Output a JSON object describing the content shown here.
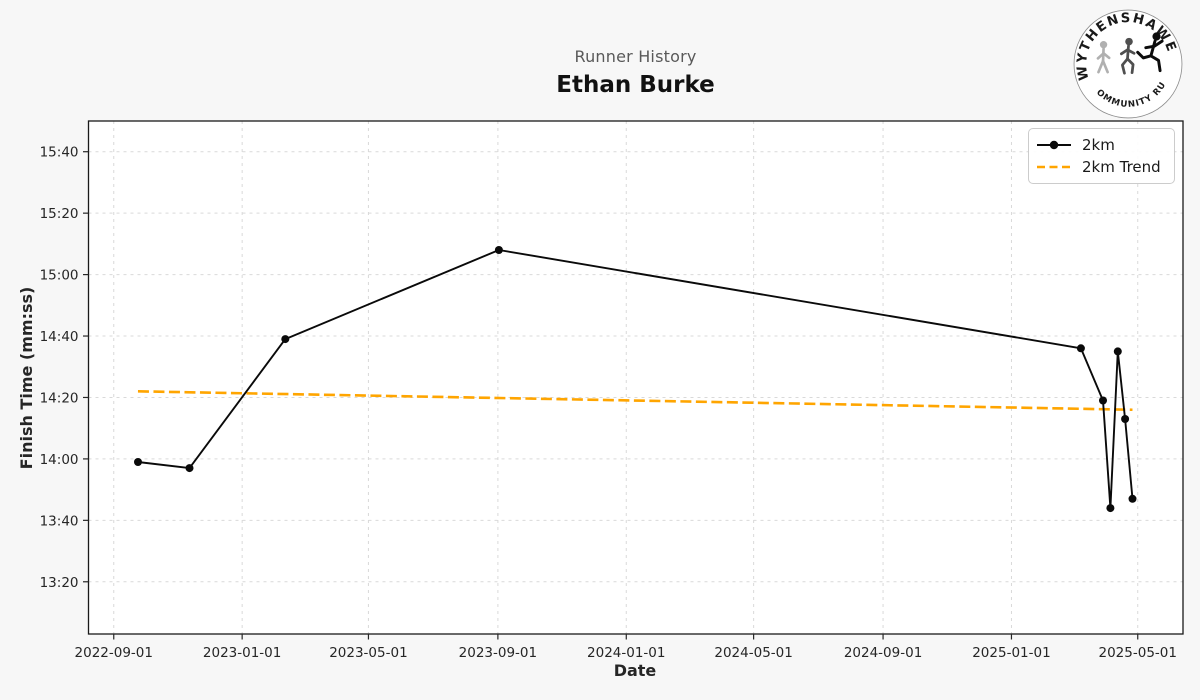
{
  "header": {
    "chart_context": "Runner History",
    "runner_name": "Ethan Burke"
  },
  "logo": {
    "arc_top": "WYTHENSHAWE",
    "arc_bottom": "COMMUNITY RUN"
  },
  "axes": {
    "xlabel": "Date",
    "ylabel": "Finish Time (mm:ss)"
  },
  "chart_data": {
    "type": "line",
    "title": "Runner History",
    "subtitle": "Ethan Burke",
    "xlabel": "Date",
    "ylabel": "Finish Time (mm:ss)",
    "grid": true,
    "legend_position": "upper right",
    "xlim": [
      "2022-08-08",
      "2025-06-13"
    ],
    "ylim_mmss": [
      "13:03",
      "15:50"
    ],
    "x_ticks": [
      "2022-09-01",
      "2023-01-01",
      "2023-05-01",
      "2023-09-01",
      "2024-01-01",
      "2024-05-01",
      "2024-09-01",
      "2025-01-01",
      "2025-05-01"
    ],
    "y_ticks": [
      "13:20",
      "13:40",
      "14:00",
      "14:20",
      "14:40",
      "15:00",
      "15:20",
      "15:40"
    ],
    "series": [
      {
        "name": "2km",
        "color": "#0a0a0a",
        "style": "solid_with_markers",
        "points": [
          {
            "date": "2022-09-24",
            "time": "13:59"
          },
          {
            "date": "2022-11-12",
            "time": "13:57"
          },
          {
            "date": "2023-02-11",
            "time": "14:39"
          },
          {
            "date": "2023-09-02",
            "time": "15:08"
          },
          {
            "date": "2025-03-08",
            "time": "14:36"
          },
          {
            "date": "2025-03-29",
            "time": "14:19"
          },
          {
            "date": "2025-04-05",
            "time": "13:44"
          },
          {
            "date": "2025-04-12",
            "time": "14:35"
          },
          {
            "date": "2025-04-19",
            "time": "14:13"
          },
          {
            "date": "2025-04-26",
            "time": "13:47"
          }
        ]
      },
      {
        "name": "2km Trend",
        "color": "#FFA500",
        "style": "dashed",
        "points": [
          {
            "date": "2022-09-24",
            "time": "14:22"
          },
          {
            "date": "2025-04-26",
            "time": "14:16"
          }
        ]
      }
    ]
  },
  "colors": {
    "figure_bg": "#f7f7f7",
    "plot_bg": "#ffffff",
    "grid": "#d9d9d9",
    "spine": "#1a1a1a",
    "tick_label": "#262626",
    "title_gray": "#595959",
    "accent_orange": "#FFA500",
    "series_black": "#0a0a0a"
  }
}
